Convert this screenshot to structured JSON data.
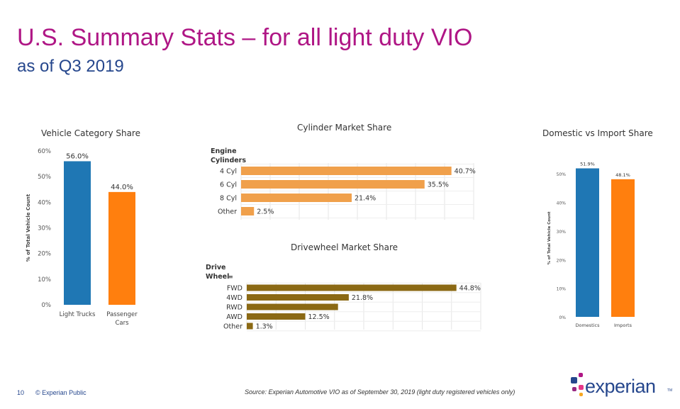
{
  "header": {
    "title": "U.S. Summary Stats – for all light duty VIO",
    "subtitle": "as of Q3 2019"
  },
  "footer": {
    "page_number": "10",
    "classification": "© Experian Public",
    "source": "Source: Experian Automotive VIO as of September 30, 2019  (light duty registered vehicles only)",
    "logo_text": "experian",
    "logo_tm": "TM"
  },
  "colors": {
    "title": "#af1685",
    "subtitle": "#26478d",
    "blue": "#1f77b4",
    "orange": "#ff7f0e",
    "cylinder": "#f0a04b",
    "drivewheel": "#8b6914",
    "logo_dots": [
      "#26478d",
      "#af1685",
      "#e63888",
      "#982881",
      "#f7a823"
    ]
  },
  "chart_data": [
    {
      "type": "bar",
      "title": "Vehicle Category Share",
      "ylabel": "% of Total Vehicle Count",
      "xlabel": "",
      "categories": [
        "Light Trucks",
        "Passenger Cars"
      ],
      "category_lines": [
        [
          "Light Trucks"
        ],
        [
          "Passenger",
          "Cars"
        ]
      ],
      "values": [
        56.0,
        44.0
      ],
      "value_labels": [
        "56.0%",
        "44.0%"
      ],
      "ylim": [
        0,
        60
      ],
      "yticks": [
        0,
        10,
        20,
        30,
        40,
        50,
        60
      ],
      "ytick_labels": [
        "0%",
        "10%",
        "20%",
        "30%",
        "40%",
        "50%",
        "60%"
      ],
      "colors": [
        "#1f77b4",
        "#ff7f0e"
      ]
    },
    {
      "type": "bar",
      "orientation": "horizontal",
      "title": "Cylinder Market Share",
      "axis_label_lines": [
        "Engine",
        "Cylinders"
      ],
      "categories": [
        "4 Cyl",
        "6 Cyl",
        "8 Cyl",
        "Other"
      ],
      "values": [
        40.7,
        35.5,
        21.4,
        2.5
      ],
      "value_labels": [
        "40.7%",
        "35.5%",
        "21.4%",
        "2.5%"
      ],
      "xlim": [
        0,
        45
      ],
      "grid": true,
      "color": "#f0a04b"
    },
    {
      "type": "bar",
      "orientation": "horizontal",
      "title": "Drivewheel Market Share",
      "axis_label_lines": [
        "Drive",
        "Wheel"
      ],
      "categories": [
        "FWD",
        "4WD",
        "RWD",
        "AWD",
        "Other"
      ],
      "values": [
        44.8,
        21.8,
        19.5,
        12.5,
        1.3
      ],
      "value_labels": [
        "44.8%",
        "21.8%",
        "",
        "12.5%",
        "1.3%"
      ],
      "xlim": [
        0,
        50
      ],
      "grid": true,
      "color": "#8b6914"
    },
    {
      "type": "bar",
      "title": "Domestic vs Import Share",
      "ylabel": "% of Total Vehicle Count",
      "xlabel": "",
      "categories": [
        "Domestics",
        "Imports"
      ],
      "category_lines": [
        [
          "Domestics"
        ],
        [
          "Imports"
        ]
      ],
      "values": [
        51.9,
        48.1
      ],
      "value_labels": [
        "51.9%",
        "48.1%"
      ],
      "ylim": [
        0,
        55
      ],
      "yticks": [
        0,
        10,
        20,
        30,
        40,
        50
      ],
      "ytick_labels": [
        "0%",
        "10%",
        "20%",
        "30%",
        "40%",
        "50%"
      ],
      "colors": [
        "#1f77b4",
        "#ff7f0e"
      ]
    }
  ]
}
